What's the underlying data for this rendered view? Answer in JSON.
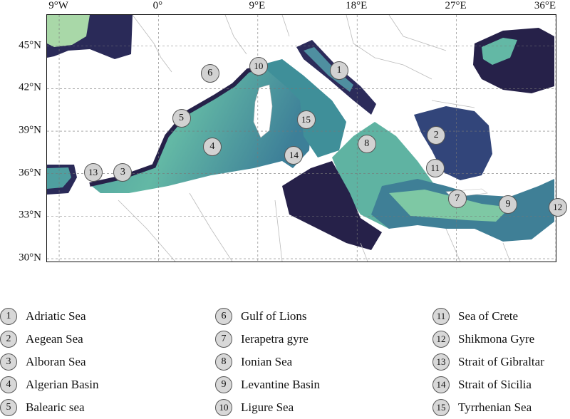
{
  "map": {
    "lon_labels": [
      "9°W",
      "0°",
      "9°E",
      "18°E",
      "27°E",
      "36°E"
    ],
    "lat_labels": [
      "45°N",
      "42°N",
      "39°N",
      "36°N",
      "33°N",
      "30°N"
    ],
    "colormap": [
      "#e6f0b8",
      "#9fd6a8",
      "#5fb3a2",
      "#3f7f96",
      "#32457a",
      "#262149"
    ],
    "land_color": "#ffffff",
    "border_color": "#bbbbbb",
    "grid": "dashed"
  },
  "markers": [
    {
      "id": "1",
      "lon": 16.5,
      "lat": 43.2
    },
    {
      "id": "2",
      "lon": 25.3,
      "lat": 38.6
    },
    {
      "id": "3",
      "lon": -3.1,
      "lat": 36.0
    },
    {
      "id": "4",
      "lon": 5.0,
      "lat": 37.8
    },
    {
      "id": "5",
      "lon": 2.2,
      "lat": 39.8
    },
    {
      "id": "6",
      "lon": 4.8,
      "lat": 43.0
    },
    {
      "id": "7",
      "lon": 27.2,
      "lat": 34.1
    },
    {
      "id": "8",
      "lon": 19.0,
      "lat": 38.0
    },
    {
      "id": "9",
      "lon": 31.8,
      "lat": 33.7
    },
    {
      "id": "10",
      "lon": 9.2,
      "lat": 43.5
    },
    {
      "id": "11",
      "lon": 25.2,
      "lat": 36.3
    },
    {
      "id": "12",
      "lon": 36.3,
      "lat": 33.5
    },
    {
      "id": "13",
      "lon": -5.8,
      "lat": 36.0
    },
    {
      "id": "14",
      "lon": 12.4,
      "lat": 37.2
    },
    {
      "id": "15",
      "lon": 13.5,
      "lat": 39.7
    }
  ],
  "legend": [
    {
      "num": "1",
      "label": "Adriatic Sea"
    },
    {
      "num": "2",
      "label": "Aegean Sea"
    },
    {
      "num": "3",
      "label": "Alboran Sea"
    },
    {
      "num": "4",
      "label": "Algerian Basin"
    },
    {
      "num": "5",
      "label": "Balearic sea"
    },
    {
      "num": "6",
      "label": "Gulf of Lions"
    },
    {
      "num": "7",
      "label": "Ierapetra gyre"
    },
    {
      "num": "8",
      "label": "Ionian Sea"
    },
    {
      "num": "9",
      "label": "Levantine Basin"
    },
    {
      "num": "10",
      "label": "Ligure Sea"
    },
    {
      "num": "11",
      "label": "Sea of Crete"
    },
    {
      "num": "12",
      "label": "Shikmona Gyre"
    },
    {
      "num": "13",
      "label": "Strait of Gibraltar"
    },
    {
      "num": "14",
      "label": "Strait of Sicilia"
    },
    {
      "num": "15",
      "label": "Tyrrhenian Sea"
    }
  ]
}
